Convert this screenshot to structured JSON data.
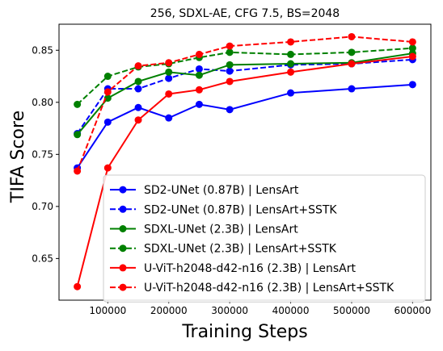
{
  "chart_data": {
    "type": "line",
    "title": "256, SDXL-AE, CFG 7.5, BS=2048",
    "xlabel": "Training Steps",
    "ylabel": "TIFA Score",
    "xlim": [
      20000,
      630000
    ],
    "ylim": [
      0.61,
      0.875
    ],
    "xticks": [
      100000,
      200000,
      300000,
      400000,
      500000,
      600000
    ],
    "xtick_labels": [
      "100000",
      "200000",
      "300000",
      "400000",
      "500000",
      "600000"
    ],
    "yticks": [
      0.65,
      0.7,
      0.75,
      0.8,
      0.85
    ],
    "ytick_labels": [
      "0.65",
      "0.70",
      "0.75",
      "0.80",
      "0.85"
    ],
    "grid": false,
    "legend_position": "lower-right",
    "x": [
      50000,
      100000,
      150000,
      200000,
      250000,
      300000,
      400000,
      500000,
      600000
    ],
    "series": [
      {
        "name": "SD2-UNet (0.87B) | LensArt",
        "color": "#0000ff",
        "dashed": false,
        "values": [
          0.737,
          0.781,
          0.795,
          0.785,
          0.798,
          0.793,
          0.809,
          0.813,
          0.817
        ]
      },
      {
        "name": "SD2-UNet (0.87B) | LensArt+SSTK",
        "color": "#0000ff",
        "dashed": true,
        "values": [
          0.77,
          0.813,
          0.813,
          0.823,
          0.832,
          0.83,
          0.836,
          0.837,
          0.841
        ]
      },
      {
        "name": "SDXL-UNet (2.3B) | LensArt",
        "color": "#008000",
        "dashed": false,
        "values": [
          0.769,
          0.804,
          0.82,
          0.829,
          0.826,
          0.836,
          0.837,
          0.838,
          0.847
        ]
      },
      {
        "name": "SDXL-UNet (2.3B) | LensArt+SSTK",
        "color": "#008000",
        "dashed": true,
        "values": [
          0.798,
          0.825,
          0.834,
          0.837,
          0.843,
          0.848,
          0.846,
          0.848,
          0.852
        ]
      },
      {
        "name": "U-ViT-h2048-d42-n16 (2.3B) | LensArt",
        "color": "#ff0000",
        "dashed": false,
        "values": [
          0.623,
          0.737,
          0.783,
          0.808,
          0.812,
          0.82,
          0.829,
          0.837,
          0.844
        ]
      },
      {
        "name": "U-ViT-h2048-d42-n16 (2.3B) | LensArt+SSTK",
        "color": "#ff0000",
        "dashed": true,
        "values": [
          0.734,
          0.81,
          0.835,
          0.838,
          0.846,
          0.854,
          0.858,
          0.863,
          0.858
        ]
      }
    ]
  }
}
